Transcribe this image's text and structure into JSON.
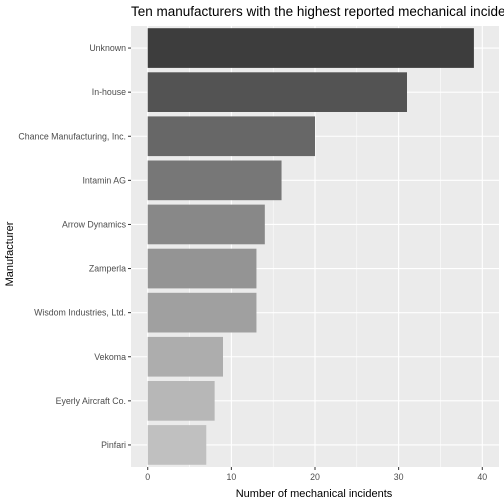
{
  "chart_data": {
    "type": "bar",
    "orientation": "horizontal",
    "title": "Ten manufacturers with the highest reported mechanical incidents",
    "xlabel": "Number of mechanical incidents",
    "ylabel": "Manufacturer",
    "xlim": [
      -2,
      42
    ],
    "xticks": [
      0,
      10,
      20,
      30,
      40
    ],
    "grid": true,
    "legend": "none",
    "categories": [
      "Unknown",
      "In-house",
      "Chance Manufacturing, Inc.",
      "Intamin AG",
      "Arrow Dynamics",
      "Zamperla",
      "Wisdom Industries, Ltd.",
      "Vekoma",
      "Eyerly Aircraft Co.",
      "Pinfari"
    ],
    "values": [
      39,
      31,
      20,
      16,
      14,
      13,
      13,
      9,
      8,
      7
    ],
    "colors": [
      "#3d3d3d",
      "#535353",
      "#676767",
      "#777777",
      "#888888",
      "#949494",
      "#a0a0a0",
      "#adadad",
      "#b7b7b7",
      "#c0c0c0"
    ],
    "panel_background": "#ebebeb",
    "gridline_color": "#ffffff"
  }
}
